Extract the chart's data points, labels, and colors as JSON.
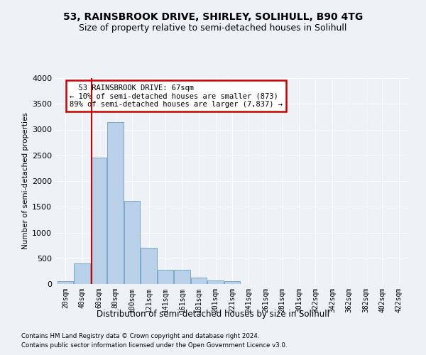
{
  "title": "53, RAINSBROOK DRIVE, SHIRLEY, SOLIHULL, B90 4TG",
  "subtitle": "Size of property relative to semi-detached houses in Solihull",
  "xlabel": "Distribution of semi-detached houses by size in Solihull",
  "ylabel": "Number of semi-detached properties",
  "footnote1": "Contains HM Land Registry data © Crown copyright and database right 2024.",
  "footnote2": "Contains public sector information licensed under the Open Government Licence v3.0.",
  "bar_labels": [
    "20sqm",
    "40sqm",
    "60sqm",
    "80sqm",
    "100sqm",
    "121sqm",
    "141sqm",
    "161sqm",
    "181sqm",
    "201sqm",
    "221sqm",
    "241sqm",
    "261sqm",
    "281sqm",
    "301sqm",
    "322sqm",
    "342sqm",
    "362sqm",
    "382sqm",
    "402sqm",
    "422sqm"
  ],
  "bar_values": [
    50,
    400,
    2450,
    3150,
    1620,
    700,
    280,
    280,
    120,
    70,
    60,
    0,
    0,
    0,
    0,
    0,
    0,
    0,
    0,
    0,
    0
  ],
  "bar_color": "#b8d0e8",
  "bar_edge_color": "#6a9fc0",
  "property_label": "53 RAINSBROOK DRIVE: 67sqm",
  "pct_smaller": 10,
  "n_smaller": 873,
  "pct_larger": 89,
  "n_larger": 7837,
  "vline_color": "#cc0000",
  "annotation_box_color": "#cc0000",
  "ylim": [
    0,
    4000
  ],
  "yticks": [
    0,
    500,
    1000,
    1500,
    2000,
    2500,
    3000,
    3500,
    4000
  ],
  "bg_color": "#eef2f7",
  "grid_color": "#ffffff",
  "title_fontsize": 10,
  "subtitle_fontsize": 9,
  "vline_x_index": 2.0
}
